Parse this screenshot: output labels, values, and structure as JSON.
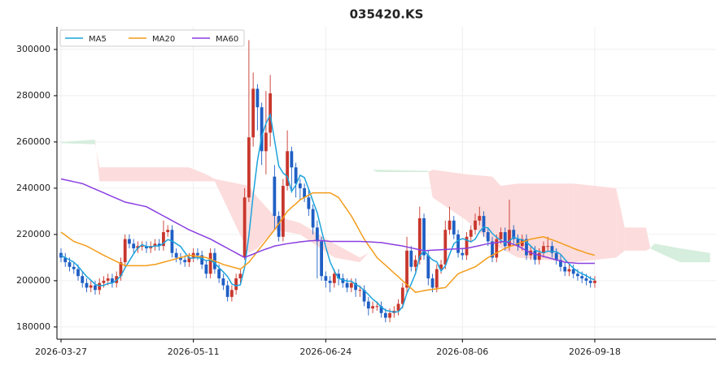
{
  "chart_data": {
    "type": "candlestick",
    "title": "035420.KS",
    "grid": true,
    "legend": "upper left",
    "up_color": "#c8372d",
    "down_color": "#1f5fc4",
    "xlim": [
      -0.95,
      153.4
    ],
    "ylim": [
      174700,
      309800
    ],
    "yticks": [
      180000,
      200000,
      220000,
      240000,
      260000,
      280000,
      300000
    ],
    "categories": [
      "2026-03-27",
      null,
      null,
      null,
      null,
      null,
      null,
      null,
      null,
      null,
      null,
      null,
      null,
      null,
      null,
      null,
      null,
      null,
      null,
      null,
      null,
      null,
      null,
      null,
      null,
      null,
      null,
      null,
      null,
      null,
      null,
      "2026-05-11",
      null,
      null,
      null,
      null,
      null,
      null,
      null,
      null,
      null,
      null,
      null,
      null,
      null,
      null,
      null,
      null,
      null,
      null,
      null,
      null,
      null,
      null,
      null,
      null,
      null,
      null,
      null,
      null,
      null,
      null,
      "2026-06-24",
      null,
      null,
      null,
      null,
      null,
      null,
      null,
      null,
      null,
      null,
      null,
      null,
      null,
      null,
      null,
      null,
      null,
      null,
      null,
      null,
      null,
      null,
      null,
      null,
      null,
      null,
      null,
      null,
      null,
      null,
      null,
      "2026-08-06",
      null,
      null,
      null,
      null,
      null,
      null,
      null,
      null,
      null,
      null,
      null,
      null,
      null,
      null,
      null,
      null,
      null,
      null,
      null,
      null,
      null,
      null,
      null,
      null,
      null,
      null,
      null,
      null,
      null,
      null,
      "2026-09-18"
    ],
    "open": [
      212000,
      210000,
      208000,
      206000,
      205000,
      202000,
      199000,
      197000,
      198000,
      196000,
      199000,
      200000,
      201000,
      199000,
      202000,
      208000,
      218000,
      216000,
      214000,
      215000,
      215000,
      214000,
      215000,
      216000,
      215000,
      221000,
      222000,
      212000,
      210000,
      209000,
      208000,
      210000,
      212000,
      211000,
      207000,
      203000,
      212000,
      205000,
      201000,
      198000,
      193000,
      196000,
      201000,
      210000,
      236000,
      262000,
      283000,
      275000,
      256000,
      264000,
      245000,
      228000,
      219000,
      241000,
      256000,
      249000,
      242000,
      240000,
      236000,
      231000,
      223000,
      217000,
      202000,
      200000,
      199000,
      203000,
      201000,
      199000,
      197000,
      199000,
      196000,
      196000,
      191000,
      188000,
      189000,
      189000,
      186000,
      184000,
      186000,
      187000,
      190000,
      197000,
      213000,
      206000,
      209000,
      227000,
      211000,
      201000,
      197000,
      205000,
      207000,
      222000,
      226000,
      220000,
      212000,
      211000,
      219000,
      222000,
      226000,
      228000,
      221000,
      217000,
      210000,
      218000,
      221000,
      215000,
      222000,
      218000,
      215000,
      218000,
      211000,
      213000,
      209000,
      212000,
      215000,
      215000,
      212000,
      209000,
      206000,
      204000,
      205000,
      203000,
      202000,
      201000,
      200000,
      199000
    ],
    "high": [
      214000,
      212000,
      210000,
      208000,
      207000,
      204000,
      201000,
      200000,
      200000,
      201000,
      202000,
      203000,
      203000,
      204000,
      210000,
      220000,
      220000,
      218000,
      217000,
      217000,
      217000,
      217000,
      218000,
      218000,
      226000,
      224000,
      224000,
      214000,
      212000,
      211000,
      212000,
      214000,
      214000,
      213000,
      209000,
      214000,
      214000,
      207000,
      203000,
      200000,
      198000,
      203000,
      205000,
      240000,
      304000,
      290000,
      285000,
      277000,
      282000,
      289000,
      250000,
      230000,
      244000,
      265000,
      258000,
      251000,
      244000,
      242000,
      240000,
      233000,
      226000,
      219000,
      204000,
      202000,
      205000,
      205000,
      203000,
      201000,
      201000,
      201000,
      198000,
      198000,
      193000,
      191000,
      191000,
      191000,
      188000,
      188000,
      189000,
      192000,
      199000,
      219000,
      215000,
      211000,
      232000,
      229000,
      213000,
      203000,
      207000,
      209000,
      226000,
      232000,
      228000,
      222000,
      214000,
      221000,
      224000,
      229000,
      232000,
      230000,
      223000,
      219000,
      220000,
      223000,
      223000,
      235000,
      224000,
      220000,
      220000,
      220000,
      215000,
      215000,
      214000,
      217000,
      219000,
      217000,
      214000,
      211000,
      208000,
      207000,
      207000,
      205000,
      204000,
      203000,
      202000,
      202000
    ],
    "low": [
      208000,
      206000,
      204000,
      203000,
      200000,
      197000,
      195000,
      195000,
      194000,
      194000,
      197000,
      198000,
      197000,
      197000,
      200000,
      206000,
      214000,
      212000,
      212000,
      213000,
      212000,
      212000,
      213000,
      213000,
      213000,
      219000,
      210000,
      208000,
      207000,
      206000,
      206000,
      208000,
      209000,
      205000,
      201000,
      201000,
      203000,
      199000,
      196000,
      191000,
      191000,
      194000,
      199000,
      209000,
      234000,
      258000,
      265000,
      250000,
      246000,
      258000,
      222000,
      217000,
      217000,
      239000,
      238000,
      236000,
      235000,
      234000,
      228000,
      220000,
      201000,
      200000,
      197000,
      195000,
      197000,
      198000,
      197000,
      195000,
      195000,
      193000,
      193000,
      189000,
      185000,
      186000,
      187000,
      184000,
      182000,
      182000,
      184000,
      185000,
      188000,
      195000,
      204000,
      204000,
      207000,
      209000,
      198000,
      195000,
      195000,
      203000,
      205000,
      220000,
      218000,
      210000,
      209000,
      209000,
      217000,
      220000,
      224000,
      219000,
      215000,
      208000,
      208000,
      216000,
      213000,
      213000,
      216000,
      213000,
      213000,
      209000,
      209000,
      207000,
      207000,
      210000,
      213000,
      210000,
      207000,
      204000,
      202000,
      202000,
      201000,
      200000,
      199000,
      198000,
      197000,
      197000
    ],
    "close": [
      210000,
      208000,
      206000,
      205000,
      202000,
      199000,
      197000,
      198000,
      196000,
      199000,
      200000,
      201000,
      199000,
      202000,
      208000,
      218000,
      216000,
      214000,
      215000,
      215000,
      214000,
      215000,
      216000,
      215000,
      221000,
      222000,
      212000,
      210000,
      209000,
      208000,
      210000,
      212000,
      211000,
      207000,
      203000,
      212000,
      205000,
      201000,
      198000,
      193000,
      196000,
      201000,
      203000,
      236000,
      262000,
      283000,
      275000,
      256000,
      264000,
      281000,
      228000,
      219000,
      241000,
      256000,
      249000,
      242000,
      240000,
      236000,
      231000,
      223000,
      217000,
      202000,
      200000,
      199000,
      203000,
      201000,
      199000,
      197000,
      199000,
      196000,
      196000,
      191000,
      188000,
      189000,
      189000,
      186000,
      184000,
      186000,
      187000,
      190000,
      197000,
      213000,
      206000,
      209000,
      227000,
      211000,
      201000,
      197000,
      205000,
      207000,
      222000,
      226000,
      220000,
      212000,
      211000,
      219000,
      222000,
      226000,
      228000,
      221000,
      217000,
      210000,
      218000,
      221000,
      215000,
      222000,
      218000,
      215000,
      218000,
      211000,
      213000,
      209000,
      212000,
      215000,
      215000,
      212000,
      209000,
      206000,
      204000,
      205000,
      203000,
      202000,
      201000,
      200000,
      199000,
      200000
    ],
    "series": [
      {
        "name": "MA5",
        "color": "#1ca3dc",
        "values": [
          211000,
          210000,
          209000,
          208000,
          206200,
          204000,
          201800,
          200200,
          198400,
          197800,
          198000,
          198800,
          199000,
          200200,
          202000,
          205600,
          208600,
          211600,
          214200,
          215600,
          214800,
          214600,
          215000,
          215000,
          216200,
          217800,
          217200,
          216000,
          214800,
          212200,
          209800,
          209800,
          210000,
          209600,
          208600,
          209000,
          207600,
          205600,
          203800,
          201800,
          198600,
          197800,
          198200,
          205800,
          219600,
          237000,
          251800,
          262400,
          268000,
          271800,
          260800,
          249600,
          246600,
          245000,
          238600,
          241400,
          245600,
          244600,
          239600,
          234400,
          229400,
          221800,
          214600,
          208200,
          204200,
          201000,
          200400,
          199800,
          199800,
          198400,
          197400,
          195800,
          194000,
          192000,
          190600,
          188600,
          187200,
          186800,
          186400,
          186600,
          188800,
          194600,
          198600,
          203000,
          210400,
          213200,
          210800,
          209000,
          208200,
          204200,
          206400,
          211400,
          216000,
          217400,
          218200,
          217600,
          216800,
          218000,
          221200,
          223200,
          222800,
          220400,
          218800,
          217400,
          216200,
          217200,
          218800,
          218200,
          217600,
          216800,
          215000,
          213200,
          212600,
          212000,
          212800,
          212600,
          212600,
          211400,
          209200,
          207200,
          205400,
          204000,
          203000,
          202200,
          201000,
          200400
        ]
      },
      {
        "name": "MA20",
        "color": "#f39c1a",
        "values": [
          221000,
          219700,
          218300,
          217000,
          216300,
          215700,
          215000,
          214000,
          213000,
          212000,
          211000,
          210100,
          209200,
          208300,
          207400,
          206500,
          206500,
          206500,
          206500,
          206500,
          206500,
          206800,
          207000,
          207500,
          208000,
          208500,
          209000,
          209500,
          210000,
          210500,
          211000,
          210800,
          210500,
          210300,
          210000,
          209300,
          208500,
          207800,
          207000,
          206500,
          206000,
          205500,
          205000,
          206500,
          208000,
          210300,
          212700,
          215000,
          217300,
          219700,
          222000,
          224700,
          227300,
          230000,
          231700,
          233300,
          235000,
          236000,
          237000,
          238000,
          238000,
          238000,
          238000,
          238000,
          237000,
          236000,
          233300,
          230700,
          228000,
          224700,
          221300,
          218000,
          215300,
          212700,
          210000,
          208300,
          206700,
          205000,
          203300,
          201700,
          200000,
          198300,
          196700,
          195000,
          195300,
          195700,
          196000,
          196300,
          196500,
          196800,
          197000,
          199000,
          201000,
          203000,
          203800,
          204500,
          205300,
          206000,
          207300,
          208700,
          210000,
          211000,
          212000,
          213000,
          214000,
          214700,
          215300,
          216000,
          216700,
          217300,
          218000,
          218300,
          218700,
          219000,
          218300,
          217700,
          217000,
          216300,
          215500,
          214800,
          214000,
          213300,
          212700,
          212000,
          211500,
          211000
        ]
      },
      {
        "name": "MA60",
        "color": "#8a3fe0",
        "values": [
          244000,
          243600,
          243200,
          242800,
          242400,
          242000,
          241200,
          240400,
          239600,
          238800,
          238000,
          237200,
          236400,
          235600,
          234800,
          234000,
          233600,
          233200,
          232800,
          232400,
          232000,
          231000,
          230000,
          229000,
          228000,
          227000,
          226000,
          225000,
          224000,
          223000,
          222000,
          221200,
          220400,
          219600,
          218800,
          218000,
          217000,
          216000,
          215000,
          214000,
          213000,
          212000,
          211000,
          210000,
          210800,
          211500,
          212300,
          213000,
          213700,
          214300,
          215000,
          215300,
          215700,
          216000,
          216300,
          216500,
          216800,
          217000,
          217200,
          217300,
          217500,
          217300,
          217200,
          217000,
          217000,
          217000,
          217000,
          217000,
          217000,
          217000,
          217000,
          216900,
          216800,
          216700,
          216600,
          216500,
          216200,
          215900,
          215600,
          215300,
          215000,
          214600,
          214200,
          213800,
          213400,
          213000,
          213100,
          213200,
          213300,
          213400,
          213500,
          213600,
          213700,
          213800,
          213900,
          214000,
          214400,
          214800,
          215200,
          215600,
          216000,
          216300,
          216500,
          216800,
          217000,
          216300,
          215700,
          215000,
          214000,
          213000,
          212000,
          211500,
          211000,
          210500,
          210000,
          209500,
          209000,
          208500,
          208000,
          207800,
          207700,
          207500,
          207500,
          207500,
          207500,
          207500
        ]
      }
    ],
    "cloud": {
      "up_color": "#d6eedd",
      "down_color": "#fcdcdc",
      "x": [
        0,
        8,
        9,
        30,
        34,
        36,
        44,
        46,
        50,
        56,
        64,
        70,
        72,
        73,
        74,
        86,
        87,
        95,
        101,
        103,
        107,
        120,
        130,
        132,
        137,
        138,
        139,
        145,
        152
      ],
      "span_a": [
        260000,
        261000,
        243000,
        243000,
        243000,
        243000,
        212000,
        214000,
        222000,
        220000,
        210000,
        208000,
        212000,
        248000,
        248000,
        247500,
        236000,
        226000,
        216000,
        214000,
        210000,
        208000,
        210000,
        213000,
        213000,
        214000,
        216000,
        214000,
        212000
      ],
      "span_b": [
        259500,
        259000,
        249000,
        249000,
        246000,
        244000,
        241000,
        236000,
        228000,
        225000,
        216000,
        210000,
        212000,
        248000,
        247000,
        247000,
        248000,
        246000,
        245000,
        241000,
        242000,
        242000,
        240000,
        223000,
        223000,
        214000,
        213000,
        208000,
        208000
      ]
    }
  }
}
